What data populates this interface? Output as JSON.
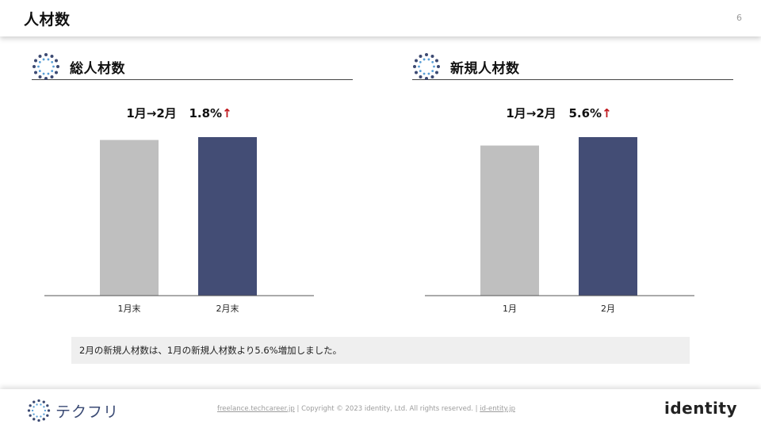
{
  "header": {
    "title": "人材数",
    "page_number": "6"
  },
  "sections": [
    {
      "label": "総人材数",
      "change": {
        "period": "1月→2月",
        "pct": "1.8%",
        "arrow": "↑"
      }
    },
    {
      "label": "新規人材数",
      "change": {
        "period": "1月→2月",
        "pct": "5.6%",
        "arrow": "↑"
      }
    }
  ],
  "chart_data": [
    {
      "type": "bar",
      "title": "",
      "categories": [
        "1月末",
        "2月末"
      ],
      "values": [
        98.2,
        100
      ],
      "colors": [
        "#bfbfbf",
        "#434d75"
      ],
      "ylim": [
        0,
        100
      ],
      "grid": false
    },
    {
      "type": "bar",
      "title": "",
      "categories": [
        "1月",
        "2月"
      ],
      "values": [
        94.7,
        100
      ],
      "colors": [
        "#bfbfbf",
        "#434d75"
      ],
      "ylim": [
        0,
        100
      ],
      "grid": false
    }
  ],
  "note": "2月の新規人材数は、1月の新規人材数より5.6%増加しました。",
  "footer": {
    "brand": "テクフリ",
    "link1": "freelance.techcareer.jp",
    "sep": " | ",
    "copyright": "Copyright © 2023 identity, Ltd. All rights reserved.",
    "link2": "id-entity.jp",
    "company": "identity"
  },
  "colors": {
    "accent_red": "#c0161c",
    "bar_gray": "#bfbfbf",
    "bar_navy": "#434d75"
  }
}
